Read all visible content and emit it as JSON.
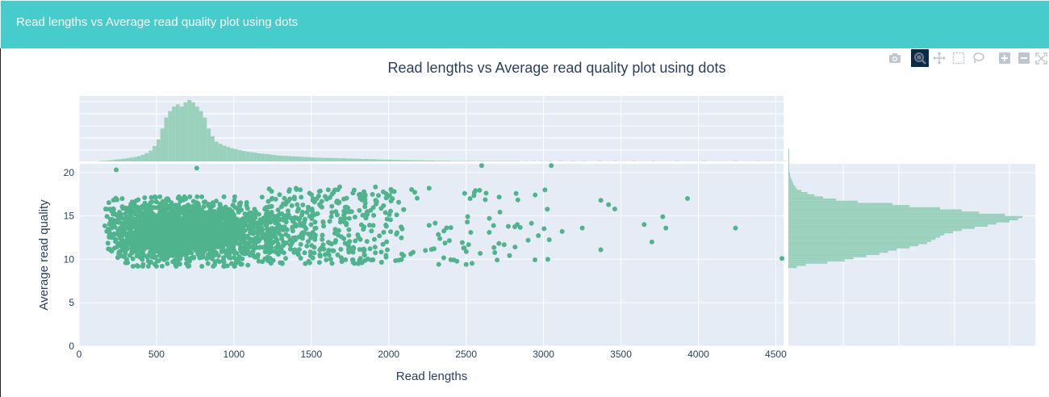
{
  "header": {
    "title": "Read lengths vs Average read quality plot using dots"
  },
  "modebar": {
    "buttons": [
      {
        "name": "camera-icon",
        "active": false
      },
      {
        "name": "zoom-icon",
        "active": true
      },
      {
        "name": "pan-icon",
        "active": false
      },
      {
        "name": "box-select-icon",
        "active": false
      },
      {
        "name": "lasso-select-icon",
        "active": false
      },
      {
        "name": "zoom-in-icon",
        "active": false
      },
      {
        "name": "zoom-out-icon",
        "active": false
      },
      {
        "name": "autoscale-icon",
        "active": false
      }
    ]
  },
  "colors": {
    "header_bg": "#47cccc",
    "plot_bg": "#e5ecf6",
    "marker": "#4fb38e",
    "hist": "#9ad1bd",
    "text": "#2a3f5f"
  },
  "chart_data": {
    "type": "scatter",
    "title": "Read lengths vs Average read quality plot using dots",
    "xlabel": "Read lengths",
    "ylabel": "Average read quality",
    "xlim": [
      0,
      4550
    ],
    "ylim": [
      0,
      21
    ],
    "x_ticks": [
      0,
      500,
      1000,
      1500,
      2000,
      2500,
      3000,
      3500,
      4000,
      4500
    ],
    "y_ticks": [
      0,
      5,
      10,
      15,
      20
    ],
    "grid": true,
    "legend": "none",
    "marginal_x": {
      "type": "histogram",
      "bin_width": 25,
      "bin_start": 125,
      "counts": [
        2,
        3,
        4,
        6,
        8,
        10,
        12,
        14,
        17,
        20,
        24,
        30,
        38,
        50,
        70,
        100,
        150,
        200,
        230,
        250,
        260,
        250,
        270,
        280,
        270,
        250,
        230,
        200,
        150,
        115,
        90,
        80,
        72,
        66,
        60,
        56,
        52,
        48,
        45,
        42,
        40,
        37,
        35,
        33,
        31,
        29,
        27,
        26,
        25,
        24,
        23,
        22,
        21,
        20,
        19,
        18,
        17,
        17,
        16,
        16,
        15,
        15,
        14,
        14,
        13,
        13,
        12,
        12,
        11,
        11,
        10,
        10,
        9,
        9,
        8,
        8,
        7,
        7,
        6,
        6,
        6,
        5,
        5,
        5,
        4,
        4,
        4,
        3,
        3,
        3,
        3,
        2,
        2,
        2,
        2,
        2,
        2,
        1,
        1,
        1,
        1,
        1,
        1,
        1,
        1,
        1,
        1,
        1,
        1,
        0,
        1,
        0,
        1,
        0,
        1,
        0,
        1,
        0,
        0,
        1,
        0,
        0,
        1,
        0,
        0,
        1,
        0,
        0,
        0,
        1,
        0,
        0,
        0,
        1,
        0,
        0,
        0,
        0,
        1,
        0,
        0,
        0,
        0,
        1,
        0,
        0,
        0,
        0,
        0,
        1,
        0,
        0,
        0,
        0,
        0,
        0,
        1,
        0,
        0,
        0,
        0,
        0,
        0,
        0,
        1,
        0,
        0,
        0,
        0,
        0,
        1,
        0,
        0,
        0,
        0,
        0,
        0,
        1
      ]
    },
    "marginal_y": {
      "type": "histogram",
      "bin_width": 0.25,
      "bin_start": 9.0,
      "counts": [
        10,
        20,
        45,
        65,
        75,
        90,
        105,
        115,
        125,
        140,
        150,
        160,
        165,
        170,
        175,
        180,
        190,
        200,
        215,
        230,
        240,
        255,
        265,
        270,
        250,
        220,
        200,
        175,
        140,
        120,
        80,
        55,
        40,
        30,
        22,
        15,
        10,
        8,
        6,
        5,
        4,
        3,
        2,
        2,
        1,
        1,
        1,
        1,
        1,
        1,
        1,
        1,
        1,
        1,
        1
      ]
    }
  }
}
